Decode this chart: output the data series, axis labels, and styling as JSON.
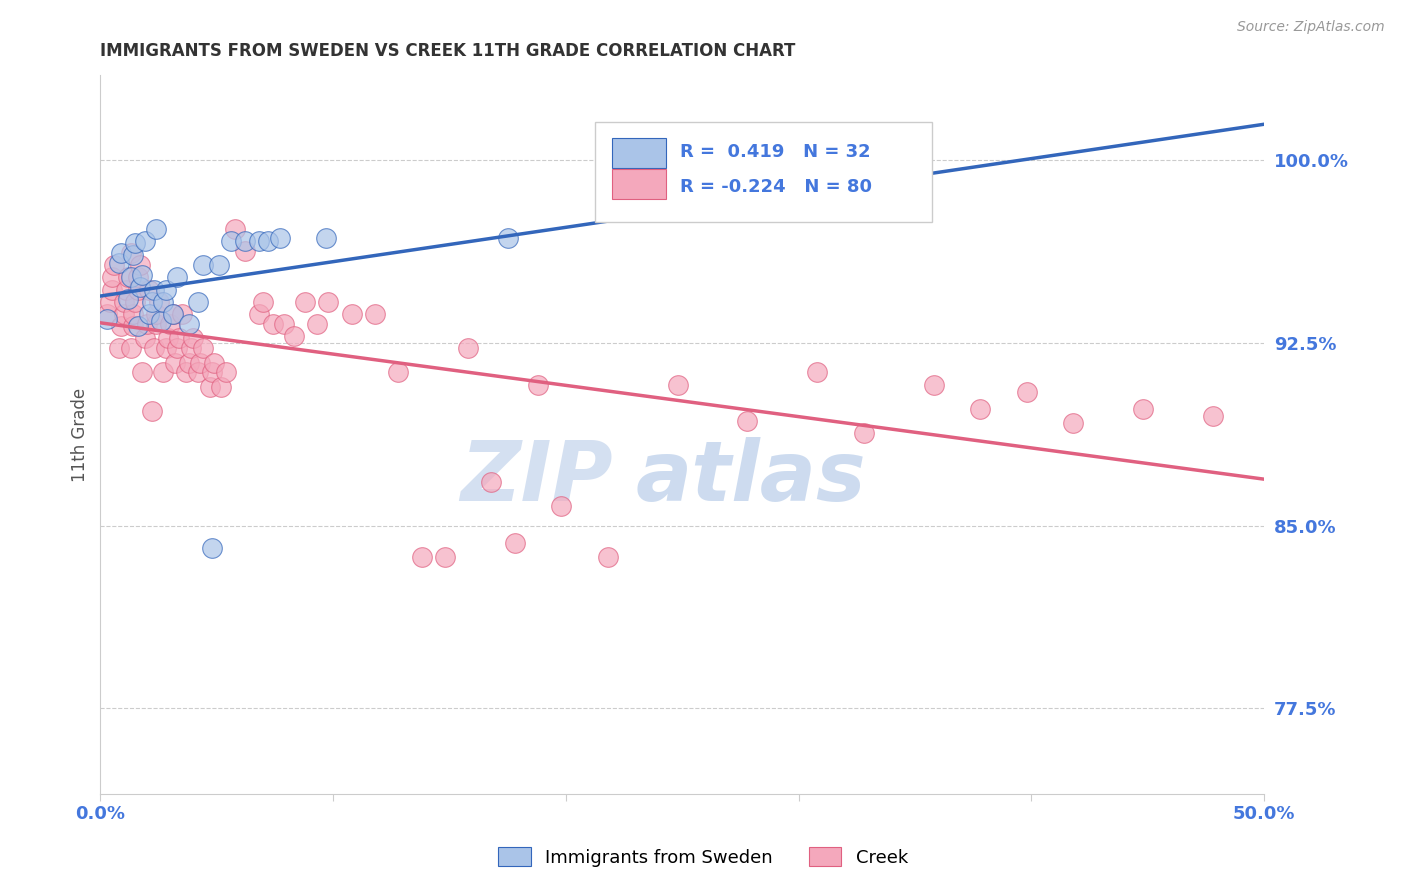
{
  "title": "IMMIGRANTS FROM SWEDEN VS CREEK 11TH GRADE CORRELATION CHART",
  "source": "Source: ZipAtlas.com",
  "ylabel": "11th Grade",
  "y_tick_labels": [
    "77.5%",
    "85.0%",
    "92.5%",
    "100.0%"
  ],
  "y_tick_values": [
    0.775,
    0.85,
    0.925,
    1.0
  ],
  "xlim": [
    0.0,
    0.5
  ],
  "ylim": [
    0.74,
    1.035
  ],
  "legend_blue_label": "Immigrants from Sweden",
  "legend_pink_label": "Creek",
  "r_blue": 0.419,
  "n_blue": 32,
  "r_pink": -0.224,
  "n_pink": 80,
  "blue_color": "#aac4e8",
  "pink_color": "#f4a8bc",
  "blue_line_color": "#3366bb",
  "pink_line_color": "#e06080",
  "watermark_zip": "ZIP",
  "watermark_atlas": "atlas",
  "background_color": "#ffffff",
  "grid_color": "#cccccc",
  "title_fontsize": 12,
  "tick_label_color": "#4477DD",
  "blue_scatter_x": [
    0.003,
    0.008,
    0.009,
    0.012,
    0.013,
    0.014,
    0.015,
    0.016,
    0.017,
    0.018,
    0.019,
    0.021,
    0.022,
    0.023,
    0.024,
    0.026,
    0.027,
    0.028,
    0.031,
    0.033,
    0.038,
    0.042,
    0.044,
    0.048,
    0.051,
    0.056,
    0.062,
    0.068,
    0.072,
    0.077,
    0.097,
    0.175
  ],
  "blue_scatter_y": [
    0.935,
    0.958,
    0.962,
    0.943,
    0.952,
    0.961,
    0.966,
    0.932,
    0.948,
    0.953,
    0.967,
    0.937,
    0.942,
    0.947,
    0.972,
    0.934,
    0.942,
    0.947,
    0.937,
    0.952,
    0.933,
    0.942,
    0.957,
    0.841,
    0.957,
    0.967,
    0.967,
    0.967,
    0.967,
    0.968,
    0.968,
    0.968
  ],
  "pink_scatter_x": [
    0.003,
    0.004,
    0.005,
    0.005,
    0.006,
    0.008,
    0.009,
    0.01,
    0.01,
    0.011,
    0.012,
    0.013,
    0.013,
    0.014,
    0.014,
    0.015,
    0.016,
    0.016,
    0.017,
    0.018,
    0.019,
    0.02,
    0.021,
    0.022,
    0.023,
    0.024,
    0.024,
    0.025,
    0.027,
    0.028,
    0.029,
    0.03,
    0.031,
    0.032,
    0.033,
    0.034,
    0.035,
    0.037,
    0.038,
    0.039,
    0.04,
    0.042,
    0.043,
    0.044,
    0.047,
    0.048,
    0.049,
    0.052,
    0.054,
    0.058,
    0.062,
    0.068,
    0.07,
    0.074,
    0.079,
    0.083,
    0.088,
    0.093,
    0.098,
    0.108,
    0.118,
    0.128,
    0.138,
    0.148,
    0.158,
    0.168,
    0.178,
    0.188,
    0.198,
    0.218,
    0.248,
    0.278,
    0.308,
    0.328,
    0.358,
    0.378,
    0.398,
    0.418,
    0.448,
    0.478
  ],
  "pink_scatter_y": [
    0.937,
    0.942,
    0.947,
    0.952,
    0.957,
    0.923,
    0.932,
    0.937,
    0.942,
    0.947,
    0.952,
    0.962,
    0.923,
    0.932,
    0.937,
    0.942,
    0.947,
    0.952,
    0.957,
    0.913,
    0.927,
    0.933,
    0.947,
    0.897,
    0.923,
    0.933,
    0.937,
    0.942,
    0.913,
    0.923,
    0.927,
    0.933,
    0.937,
    0.917,
    0.923,
    0.927,
    0.937,
    0.913,
    0.917,
    0.923,
    0.927,
    0.913,
    0.917,
    0.923,
    0.907,
    0.913,
    0.917,
    0.907,
    0.913,
    0.972,
    0.963,
    0.937,
    0.942,
    0.933,
    0.933,
    0.928,
    0.942,
    0.933,
    0.942,
    0.937,
    0.937,
    0.913,
    0.837,
    0.837,
    0.923,
    0.868,
    0.843,
    0.908,
    0.858,
    0.837,
    0.908,
    0.893,
    0.913,
    0.888,
    0.908,
    0.898,
    0.905,
    0.892,
    0.898,
    0.895
  ]
}
